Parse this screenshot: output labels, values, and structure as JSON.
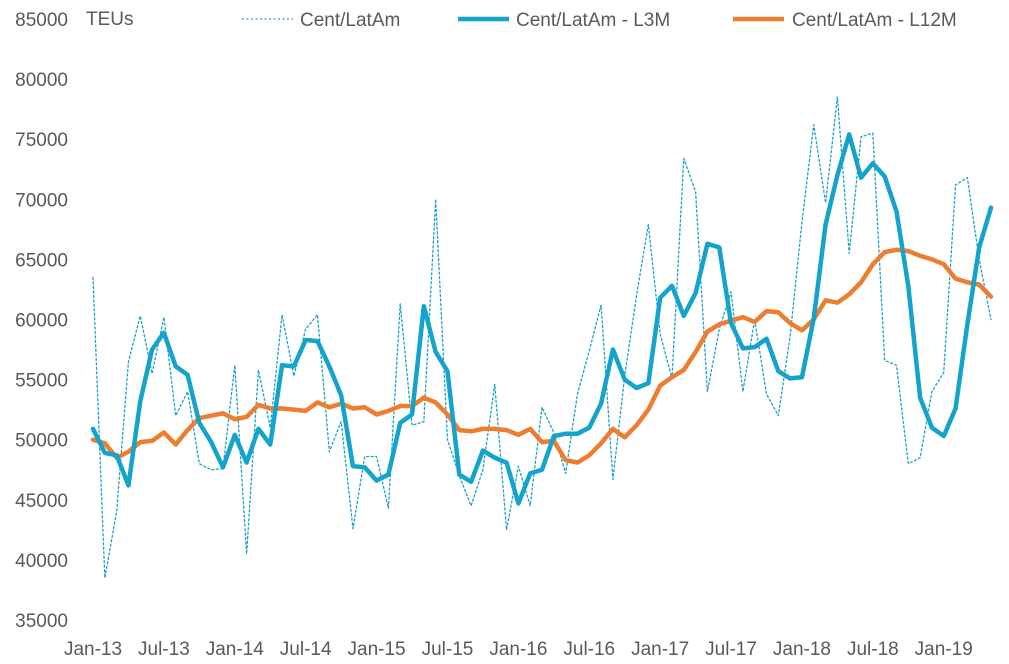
{
  "chart_data": {
    "type": "line",
    "unit_label": "TEUs",
    "ylim": [
      35000,
      85000
    ],
    "y_ticks": [
      35000,
      40000,
      45000,
      50000,
      55000,
      60000,
      65000,
      70000,
      75000,
      80000,
      85000
    ],
    "x_tick_labels": [
      "Jan-13",
      "Jul-13",
      "Jan-14",
      "Jul-14",
      "Jan-15",
      "Jul-15",
      "Jan-16",
      "Jul-16",
      "Jan-17",
      "Jul-17",
      "Jan-18",
      "Jul-18",
      "Jan-19"
    ],
    "x_tick_month_index": [
      0,
      6,
      12,
      18,
      24,
      30,
      36,
      42,
      48,
      54,
      60,
      66,
      72
    ],
    "n_months": 77,
    "legend_position": "top",
    "grid": false,
    "series": [
      {
        "name": "Cent/LatAm",
        "color": "#1ba1c9",
        "style": "dotted",
        "values": [
          63500,
          38500,
          44000,
          56500,
          60300,
          55500,
          60200,
          52000,
          54000,
          48000,
          47500,
          47600,
          56200,
          40500,
          55800,
          51000,
          60400,
          55300,
          59200,
          60400,
          49000,
          51500,
          42600,
          48600,
          48600,
          44300,
          61300,
          51200,
          51500,
          70000,
          50000,
          47000,
          44500,
          47500,
          54600,
          42500,
          47800,
          44500,
          52700,
          50600,
          47200,
          53800,
          57400,
          61200,
          46700,
          55300,
          62000,
          67900,
          58800,
          55100,
          73400,
          70600,
          54000,
          59200,
          62300,
          54000,
          60000,
          53800,
          52000,
          58600,
          68100,
          76200,
          69700,
          78500,
          65500,
          75200,
          75500,
          56600,
          56200,
          48000,
          48500,
          54000,
          55600,
          71200,
          71800,
          65000,
          60000
        ]
      },
      {
        "name": "Cent/LatAm - L3M",
        "color": "#14a3cb",
        "style": "solid-thick",
        "values": [
          50900,
          48900,
          48700,
          46200,
          53200,
          57500,
          58900,
          56100,
          55400,
          51400,
          49800,
          47700,
          50400,
          48100,
          50900,
          49600,
          56200,
          56100,
          58300,
          58200,
          56100,
          53700,
          47800,
          47700,
          46600,
          47100,
          51400,
          52100,
          61100,
          57300,
          55700,
          47100,
          46500,
          49100,
          48500,
          48100,
          44700,
          47200,
          47500,
          50300,
          50500,
          50500,
          51000,
          53000,
          57500,
          55000,
          54300,
          54700,
          61800,
          62800,
          60300,
          62200,
          66300,
          66000,
          59700,
          57600,
          57700,
          58400,
          55700,
          55100,
          55200,
          60100,
          67900,
          72000,
          75400,
          71800,
          73000,
          71900,
          69000,
          62800,
          53500,
          51000,
          50300,
          52600,
          59600,
          66000,
          69300
        ]
      },
      {
        "name": "Cent/LatAm - L12M",
        "color": "#ed7d31",
        "style": "solid-thick",
        "values": [
          50000,
          49700,
          48500,
          49000,
          49800,
          49900,
          50600,
          49600,
          50800,
          51800,
          52000,
          52200,
          51700,
          51900,
          52900,
          52600,
          52600,
          52500,
          52400,
          53100,
          52700,
          53000,
          52600,
          52700,
          52100,
          52400,
          52800,
          52800,
          53500,
          53100,
          52100,
          50800,
          50700,
          50900,
          50900,
          50800,
          50400,
          50900,
          49800,
          49900,
          48300,
          48100,
          48700,
          49700,
          50900,
          50200,
          51200,
          52500,
          54500,
          55200,
          55800,
          57300,
          59000,
          59600,
          59900,
          60200,
          59800,
          60700,
          60600,
          59700,
          59100,
          60000,
          61600,
          61400,
          62100,
          63100,
          64600,
          65600,
          65800,
          65700,
          65300,
          65000,
          64600,
          63400,
          63100,
          62900,
          61900
        ]
      }
    ]
  }
}
